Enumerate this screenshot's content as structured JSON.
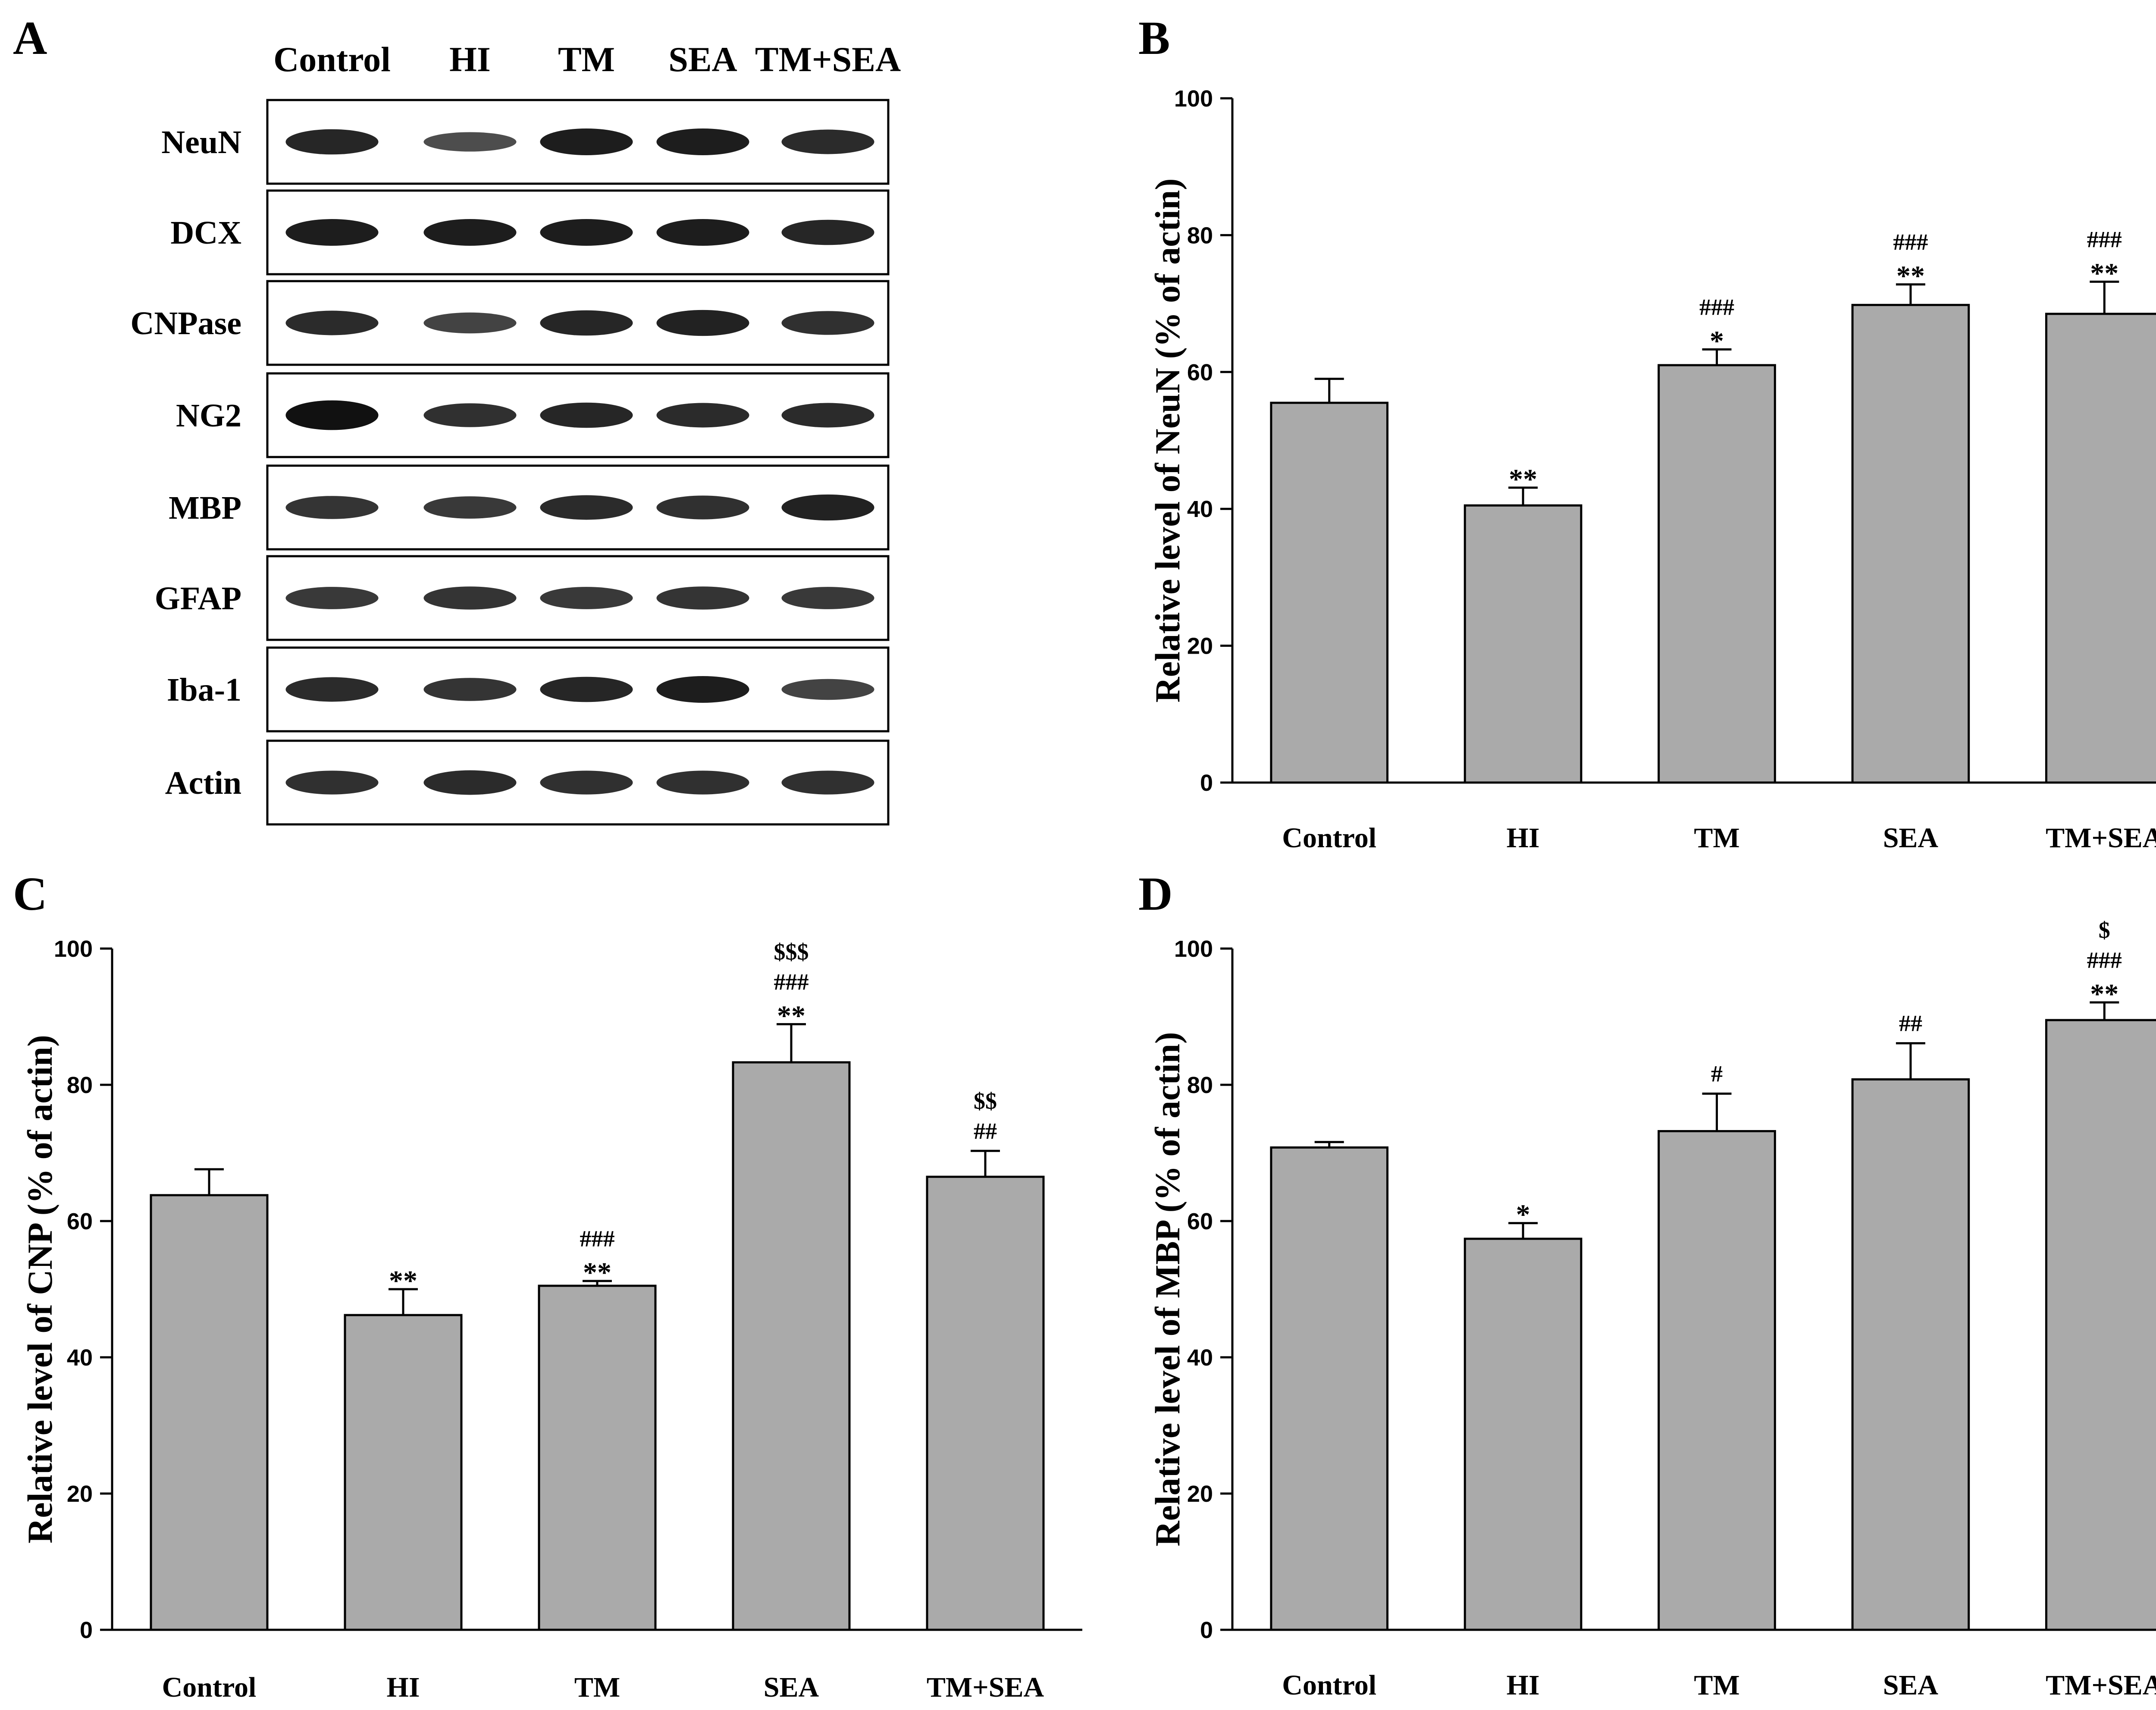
{
  "panels": {
    "A": "A",
    "B": "B",
    "C": "C",
    "D": "D"
  },
  "blot": {
    "lanes": [
      "Control",
      "HI",
      "TM",
      "SEA",
      "TM+SEA"
    ],
    "proteins": [
      {
        "name": "NeuN",
        "intensity": [
          0.9,
          0.5,
          1.0,
          1.0,
          0.85
        ]
      },
      {
        "name": "DCX",
        "intensity": [
          1.0,
          1.0,
          1.0,
          1.0,
          0.9
        ]
      },
      {
        "name": "CNPase",
        "intensity": [
          0.85,
          0.6,
          0.9,
          0.95,
          0.8
        ]
      },
      {
        "name": "NG2",
        "intensity": [
          1.2,
          0.8,
          0.9,
          0.85,
          0.85
        ]
      },
      {
        "name": "MBP",
        "intensity": [
          0.75,
          0.7,
          0.85,
          0.8,
          0.95
        ]
      },
      {
        "name": "GFAP",
        "intensity": [
          0.7,
          0.75,
          0.7,
          0.75,
          0.7
        ]
      },
      {
        "name": "Iba-1",
        "intensity": [
          0.85,
          0.75,
          0.9,
          1.0,
          0.6
        ]
      },
      {
        "name": "Actin",
        "intensity": [
          0.8,
          0.85,
          0.8,
          0.8,
          0.8
        ]
      }
    ]
  },
  "chart_data": [
    {
      "panel": "B",
      "type": "bar",
      "ylabel": "Relative level of NeuN (% of actin)",
      "xlabel": "",
      "categories": [
        "Control",
        "HI",
        "TM",
        "SEA",
        "TM+SEA"
      ],
      "values": [
        55.5,
        40.5,
        61,
        69.8,
        68.5
      ],
      "errors": [
        3.5,
        2.6,
        2.3,
        3,
        4.7
      ],
      "significance": [
        [],
        [
          "**"
        ],
        [
          "###",
          "*"
        ],
        [
          "###",
          "**"
        ],
        [
          "###",
          "**"
        ]
      ],
      "ylim": [
        0,
        100
      ],
      "yticks": [
        0,
        20,
        40,
        60,
        80,
        100
      ]
    },
    {
      "panel": "C",
      "type": "bar",
      "ylabel": "Relative level of CNP (% of actin)",
      "xlabel": "",
      "categories": [
        "Control",
        "HI",
        "TM",
        "SEA",
        "TM+SEA"
      ],
      "values": [
        63.8,
        46.2,
        50.5,
        83.3,
        66.5
      ],
      "errors": [
        3.8,
        3.8,
        0.7,
        5.6,
        3.8
      ],
      "significance": [
        [],
        [
          "**"
        ],
        [
          "###",
          "**"
        ],
        [
          "$$$",
          "###",
          "**"
        ],
        [
          "$$",
          "##"
        ]
      ],
      "ylim": [
        0,
        100
      ],
      "yticks": [
        0,
        20,
        40,
        60,
        80,
        100
      ]
    },
    {
      "panel": "D",
      "type": "bar",
      "ylabel": "Relative level of MBP (% of actin)",
      "xlabel": "",
      "categories": [
        "Control",
        "HI",
        "TM",
        "SEA",
        "TM+SEA"
      ],
      "values": [
        70.8,
        57.4,
        73.2,
        80.8,
        89.5
      ],
      "errors": [
        0.8,
        2.3,
        5.5,
        5.3,
        2.6
      ],
      "significance": [
        [],
        [
          "*"
        ],
        [
          "#"
        ],
        [
          "##"
        ],
        [
          "$",
          "###",
          "**"
        ]
      ],
      "ylim": [
        0,
        100
      ],
      "yticks": [
        0,
        20,
        40,
        60,
        80,
        100
      ]
    }
  ]
}
